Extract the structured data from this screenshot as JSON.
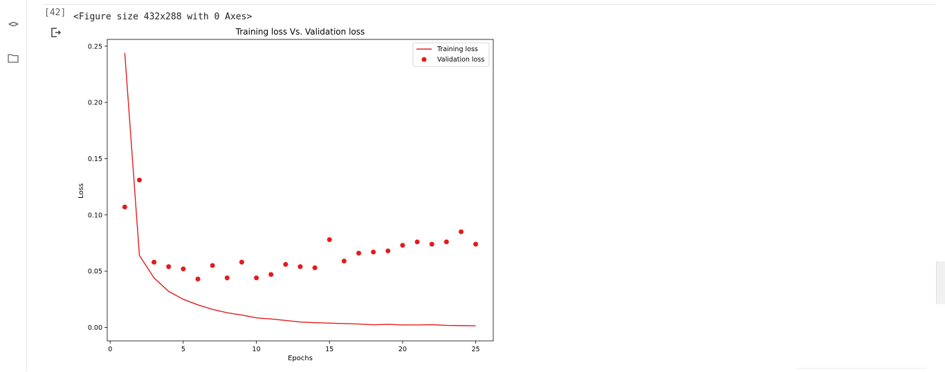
{
  "notebook": {
    "execution_count": "[42]",
    "figure_text": "<Figure size 432x288 with 0 Axes>"
  },
  "icons": {
    "code": "code-icon",
    "folder": "folder-icon",
    "output": "output-menu-icon"
  },
  "colors": {
    "series": "#e41a1c",
    "axis": "#000000"
  },
  "chart_data": {
    "type": "line",
    "title": "Training loss Vs. Validation loss",
    "xlabel": "Epochs",
    "ylabel": "Loss",
    "xlim": [
      -0.2,
      26.2
    ],
    "ylim": [
      -0.012,
      0.256
    ],
    "xticks": [
      0,
      5,
      10,
      15,
      20,
      25
    ],
    "yticks": [
      0.0,
      0.05,
      0.1,
      0.15,
      0.2,
      0.25
    ],
    "ytick_labels": [
      "0.00",
      "0.05",
      "0.10",
      "0.15",
      "0.20",
      "0.25"
    ],
    "grid": false,
    "legend": "top-right",
    "x": [
      1,
      2,
      3,
      4,
      5,
      6,
      7,
      8,
      9,
      10,
      11,
      12,
      13,
      14,
      15,
      16,
      17,
      18,
      19,
      20,
      21,
      22,
      23,
      24,
      25
    ],
    "series": [
      {
        "name": "Training loss",
        "style": "line",
        "values": [
          0.244,
          0.064,
          0.044,
          0.032,
          0.025,
          0.02,
          0.016,
          0.013,
          0.011,
          0.0085,
          0.0075,
          0.0062,
          0.0048,
          0.0042,
          0.0038,
          0.0034,
          0.003,
          0.0023,
          0.0027,
          0.0022,
          0.0022,
          0.0024,
          0.0018,
          0.0016,
          0.0014
        ]
      },
      {
        "name": "Validation loss",
        "style": "scatter",
        "values": [
          0.107,
          0.131,
          0.058,
          0.054,
          0.052,
          0.043,
          0.055,
          0.044,
          0.058,
          0.044,
          0.047,
          0.056,
          0.054,
          0.053,
          0.078,
          0.059,
          0.066,
          0.067,
          0.068,
          0.073,
          0.076,
          0.074,
          0.076,
          0.085,
          0.074
        ]
      }
    ]
  }
}
